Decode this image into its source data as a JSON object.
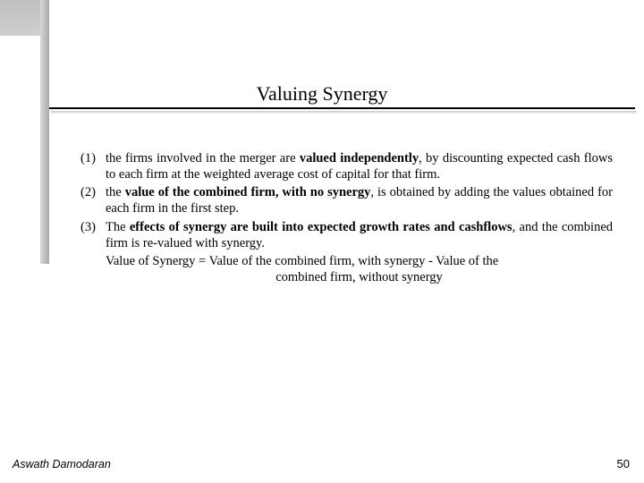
{
  "title": "Valuing Synergy",
  "items": [
    {
      "num": "(1)",
      "prefix": "the firms involved in the merger are ",
      "bold": "valued independently",
      "suffix": ", by discounting expected cash flows to each firm at the weighted average cost of capital for that firm."
    },
    {
      "num": "(2)",
      "prefix": "the ",
      "bold": "value of the combined firm, with no synergy",
      "suffix": ", is obtained by adding the values obtained for each firm in the first step."
    },
    {
      "num": "(3)",
      "prefix": "The ",
      "bold": "effects of synergy are built into expected growth rates and cashflows",
      "suffix": ", and the combined firm is re-valued with synergy."
    }
  ],
  "equation": {
    "line1": "Value of Synergy = Value of the combined firm, with synergy -  Value of the",
    "line2": "combined firm, without synergy"
  },
  "footer": {
    "author": "Aswath Damodaran",
    "page": "50"
  }
}
